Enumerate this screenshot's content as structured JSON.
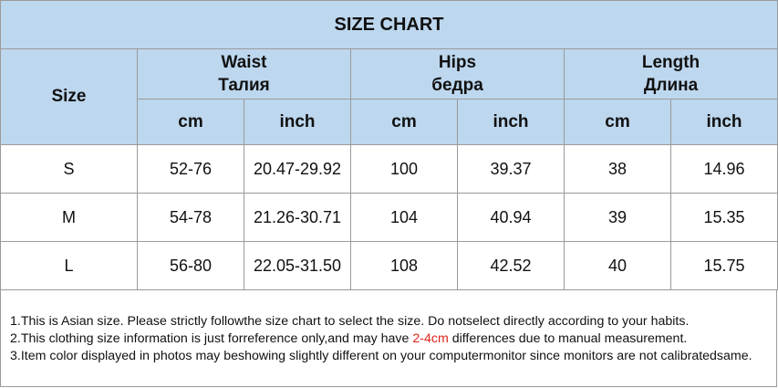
{
  "title": "SIZE CHART",
  "header": {
    "size": "Size",
    "groups": [
      {
        "en": "Waist",
        "ru": "Талия"
      },
      {
        "en": "Hips",
        "ru": "бедра"
      },
      {
        "en": "Length",
        "ru": "Длина"
      }
    ],
    "units": [
      "cm",
      "inch",
      "cm",
      "inch",
      "cm",
      "inch"
    ]
  },
  "rows": [
    [
      "S",
      "52-76",
      "20.47-29.92",
      "100",
      "39.37",
      "38",
      "14.96"
    ],
    [
      "M",
      "54-78",
      "21.26-30.71",
      "104",
      "40.94",
      "39",
      "15.35"
    ],
    [
      "L",
      "56-80",
      "22.05-31.50",
      "108",
      "42.52",
      "40",
      "15.75"
    ]
  ],
  "notes": [
    {
      "text": "1.This is Asian size. Please strictly followthe size chart to select the size. Do notselect directly according to your habits."
    },
    {
      "before": "2.This clothing size information is just forreference only,and may have ",
      "highlight": "2-4cm",
      "after": " differences due to manual measurement."
    },
    {
      "text": "3.Item color displayed in photos may beshowing slightly different on your computermonitor since monitors are not calibratedsame."
    }
  ]
}
